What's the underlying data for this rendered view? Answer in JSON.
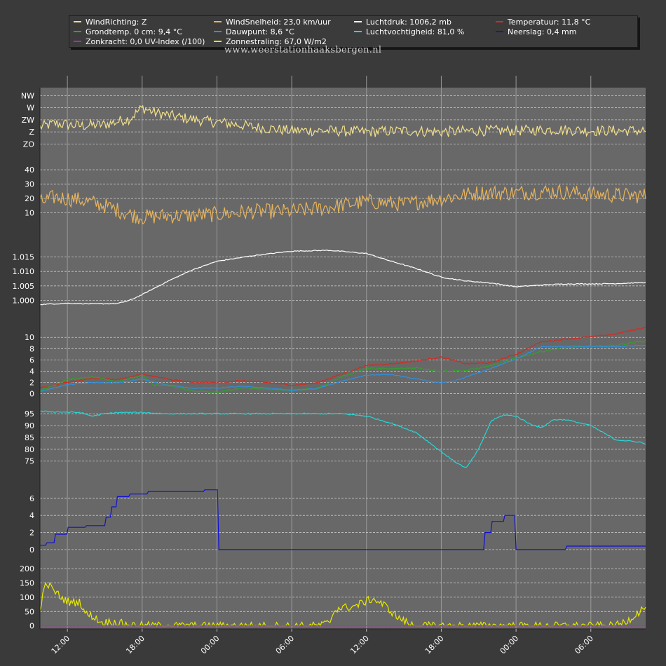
{
  "watermark": "www.weerstationhaaksbergen.nl",
  "legend": [
    {
      "label": "WindRichting: Z",
      "color": "#f2df8a"
    },
    {
      "label": "WindSnelheid: 23,0 km/uur",
      "color": "#e8b45a"
    },
    {
      "label": "Luchtdruk: 1006,2 mb",
      "color": "#ffffff"
    },
    {
      "label": "Temperatuur: 11,8 °C",
      "color": "#d42a1e"
    },
    {
      "label": "Grondtemp. 0 cm: 9,4 °C",
      "color": "#2fa32a"
    },
    {
      "label": "Dauwpunt: 8,6 °C",
      "color": "#2f8fe0"
    },
    {
      "label": "Luchtvochtigheid: 81,0 %",
      "color": "#29d4d4"
    },
    {
      "label": "Neerslag: 0,4 mm",
      "color": "#1010d8"
    },
    {
      "label": "Zonkracht: 0,0 UV-Index (/100)",
      "color": "#c020c0"
    },
    {
      "label": "Zonnestraling: 67,0 W/m2",
      "color": "#e8e800"
    }
  ],
  "chart_data": {
    "type": "line",
    "x_unit": "hours",
    "x_tick_labels": [
      "12:00",
      "18:00",
      "00:00",
      "06:00",
      "12:00",
      "18:00",
      "00:00",
      "06:00"
    ],
    "x_range": [
      9.8,
      58.4
    ],
    "x_ticks": [
      12,
      18,
      24,
      30,
      36,
      42,
      48,
      54
    ],
    "grid": true,
    "legend_position": "top",
    "panels": [
      {
        "name": "wind-direction",
        "y_ticks": [
          {
            "v": 4,
            "label": "NW"
          },
          {
            "v": 3,
            "label": "W"
          },
          {
            "v": 2,
            "label": "ZW"
          },
          {
            "v": 1,
            "label": "Z"
          },
          {
            "v": 0,
            "label": "ZO"
          }
        ],
        "ylim": [
          -0.5,
          4.6
        ],
        "series": [
          {
            "legend": 0,
            "color": "#f2df8a",
            "noise": 0.45,
            "x": [
              9.8,
              11,
              13,
              15,
              17,
              18,
              19,
              21,
              23,
              25,
              27,
              30,
              33,
              36,
              39,
              42,
              45,
              48,
              51,
              54,
              57,
              58.4
            ],
            "y": [
              1.4,
              1.7,
              1.5,
              1.6,
              2.1,
              3.0,
              2.6,
              2.2,
              1.9,
              1.7,
              1.4,
              1.1,
              1.1,
              1.0,
              1.1,
              1.0,
              1.1,
              1.1,
              1.2,
              1.1,
              1.1,
              1.1
            ]
          }
        ]
      },
      {
        "name": "wind-speed",
        "y_ticks": [
          {
            "v": 10,
            "label": "10"
          },
          {
            "v": 20,
            "label": "20"
          },
          {
            "v": 30,
            "label": "30"
          },
          {
            "v": 40,
            "label": "40"
          }
        ],
        "ylim": [
          2,
          44
        ],
        "series": [
          {
            "legend": 1,
            "color": "#e8b45a",
            "noise": 5.5,
            "x": [
              9.8,
              11,
              13,
              15,
              17,
              18,
              20,
              22,
              24,
              27,
              30,
              33,
              36,
              39,
              42,
              45,
              48,
              51,
              54,
              57,
              58.4
            ],
            "y": [
              17,
              21,
              19,
              15,
              9,
              7,
              8,
              8,
              9,
              11,
              11,
              14,
              18,
              16,
              20,
              24,
              24,
              25,
              23,
              22,
              22
            ]
          }
        ]
      },
      {
        "name": "pressure",
        "y_ticks": [
          {
            "v": 1.0,
            "label": "1.000"
          },
          {
            "v": 1.005,
            "label": "1.005"
          },
          {
            "v": 1.01,
            "label": "1.010"
          },
          {
            "v": 1.015,
            "label": "1.015"
          }
        ],
        "ylim": [
          0.996,
          1.019
        ],
        "series": [
          {
            "legend": 2,
            "color": "#ffffff",
            "noise": 0.00015,
            "x": [
              9.8,
              12,
              14,
              16,
              17,
              18,
              20,
              22,
              24,
              27,
              30,
              33,
              36,
              38,
              40,
              42,
              44,
              46,
              48,
              50,
              52,
              54,
              56,
              58.4
            ],
            "y": [
              0.9986,
              0.999,
              0.9988,
              0.9989,
              1.0,
              1.002,
              1.0065,
              1.0105,
              1.0135,
              1.0155,
              1.017,
              1.0173,
              1.0162,
              1.0135,
              1.011,
              1.008,
              1.0067,
              1.006,
              1.0047,
              1.0053,
              1.0057,
              1.0057,
              1.0058,
              1.0062
            ]
          }
        ]
      },
      {
        "name": "temperature",
        "y_ticks": [
          {
            "v": 0,
            "label": "0"
          },
          {
            "v": 2,
            "label": "2"
          },
          {
            "v": 4,
            "label": "4"
          },
          {
            "v": 6,
            "label": "6"
          },
          {
            "v": 8,
            "label": "8"
          },
          {
            "v": 10,
            "label": "10"
          }
        ],
        "ylim": [
          -0.8,
          11.4
        ],
        "series": [
          {
            "legend": 3,
            "color": "#d42a1e",
            "noise": 0.12,
            "x": [
              9.8,
              12,
              14,
              16,
              18,
              20,
              22,
              24,
              26,
              28,
              30,
              32,
              34,
              36,
              38,
              40,
              42,
              44,
              46,
              48,
              50,
              52,
              54,
              56,
              58.4
            ],
            "y": [
              1.0,
              2.0,
              2.8,
              2.5,
              3.5,
              2.6,
              2.0,
              2.0,
              2.3,
              2.0,
              1.5,
              1.9,
              3.5,
              5.0,
              5.3,
              5.8,
              6.5,
              5.3,
              5.5,
              7.0,
              9.2,
              9.7,
              10.1,
              10.6,
              11.8
            ]
          },
          {
            "legend": 4,
            "color": "#2fa32a",
            "noise": 0.15,
            "x": [
              9.8,
              12,
              14,
              16,
              18,
              19,
              20,
              22,
              24,
              26,
              28,
              30,
              32,
              34,
              36,
              38,
              40,
              42,
              44,
              46,
              48,
              50,
              52,
              54,
              56,
              58.4
            ],
            "y": [
              0.5,
              2.5,
              3.0,
              2.2,
              3.2,
              1.5,
              1.5,
              0.5,
              0.2,
              1.0,
              0.8,
              0.6,
              0.9,
              3.0,
              4.5,
              4.4,
              4.6,
              4.0,
              4.1,
              5.0,
              6.3,
              7.5,
              8.2,
              8.3,
              8.6,
              9.4
            ]
          },
          {
            "legend": 5,
            "color": "#2f8fe0",
            "noise": 0.08,
            "x": [
              9.8,
              12,
              14,
              16,
              18,
              20,
              22,
              24,
              26,
              28,
              30,
              32,
              34,
              36,
              38,
              40,
              42,
              43,
              46,
              48,
              50,
              52,
              54,
              56,
              58.4
            ],
            "y": [
              0.4,
              1.6,
              2.0,
              1.9,
              2.6,
              1.5,
              1.0,
              1.0,
              1.3,
              1.0,
              0.6,
              0.9,
              2.2,
              3.3,
              3.4,
              2.6,
              1.9,
              2.2,
              4.5,
              6.2,
              8.3,
              8.4,
              8.4,
              8.3,
              8.6
            ]
          }
        ]
      },
      {
        "name": "humidity",
        "y_ticks": [
          {
            "v": 75,
            "label": "75"
          },
          {
            "v": 80,
            "label": "80"
          },
          {
            "v": 85,
            "label": "85"
          },
          {
            "v": 90,
            "label": "90"
          },
          {
            "v": 95,
            "label": "95"
          }
        ],
        "ylim": [
          69,
          98
        ],
        "series": [
          {
            "legend": 6,
            "color": "#29d4d4",
            "noise": 0.25,
            "x": [
              9.8,
              13,
              14,
              15,
              16,
              18,
              20,
              22,
              25,
              28,
              31,
              34,
              36,
              38,
              40,
              42,
              43,
              44,
              45,
              46,
              47,
              48,
              49,
              50,
              51,
              52,
              54,
              56,
              58,
              58.4
            ],
            "y": [
              96,
              95.5,
              94,
              95,
              95.5,
              95.5,
              95,
              95,
              95,
              95,
              95,
              95,
              94,
              91,
              87,
              79,
              75,
              72,
              80,
              92,
              94.5,
              94,
              91,
              89,
              92.5,
              92.5,
              90,
              84,
              83,
              82
            ]
          }
        ]
      },
      {
        "name": "precipitation",
        "y_ticks": [
          {
            "v": 0,
            "label": "0"
          },
          {
            "v": 2,
            "label": "2"
          },
          {
            "v": 4,
            "label": "4"
          },
          {
            "v": 6,
            "label": "6"
          }
        ],
        "ylim": [
          -0.5,
          7.3
        ],
        "series": [
          {
            "legend": 7,
            "color": "#1010d8",
            "noise": 0,
            "step": true,
            "x": [
              9.8,
              10.3,
              11,
              12,
              13.5,
              14.6,
              15,
              15.5,
              16,
              17,
              18.5,
              21,
              23,
              24,
              24.05,
              30,
              36,
              40,
              42,
              44.5,
              45.5,
              46,
              47,
              47.9,
              47.95,
              50,
              52,
              54,
              56,
              58.4
            ],
            "y": [
              0.5,
              0.8,
              1.8,
              2.6,
              2.8,
              2.8,
              3.8,
              5.0,
              6.2,
              6.5,
              6.8,
              6.8,
              7.0,
              7.0,
              0.0,
              0.0,
              0.0,
              0.0,
              0.0,
              0.0,
              2.0,
              3.3,
              4.0,
              4.0,
              0.0,
              0.0,
              0.4,
              0.4,
              0.4,
              0.4
            ]
          }
        ]
      },
      {
        "name": "solar",
        "y_ticks": [
          {
            "v": 0,
            "label": "0"
          },
          {
            "v": 50,
            "label": "50"
          },
          {
            "v": 100,
            "label": "100"
          },
          {
            "v": 150,
            "label": "150"
          },
          {
            "v": 200,
            "label": "200"
          }
        ],
        "ylim": [
          -8,
          222
        ],
        "series": [
          {
            "legend": 9,
            "color": "#e8e800",
            "noise": 14,
            "clip0": true,
            "x": [
              9.8,
              10.3,
              11,
              11.6,
              12.3,
              13,
              13.5,
              14,
              14.8,
              15.5,
              16.5,
              17.5,
              22,
              30,
              32,
              33,
              33.5,
              35,
              36.5,
              37.5,
              38.5,
              39.5,
              40.5,
              48,
              56,
              57,
              58.4
            ],
            "y": [
              65,
              150,
              120,
              95,
              80,
              85,
              40,
              35,
              10,
              15,
              8,
              1,
              0,
              0,
              0,
              10,
              60,
              68,
              95,
              70,
              30,
              5,
              0,
              0,
              0,
              20,
              67
            ]
          },
          {
            "legend": 8,
            "color": "#c020c0",
            "noise": 0,
            "x": [
              9.8,
              58.4
            ],
            "y": [
              0,
              0
            ]
          }
        ]
      }
    ]
  }
}
